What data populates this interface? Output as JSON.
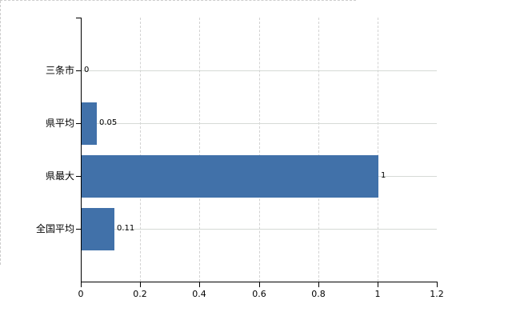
{
  "chart_data": {
    "type": "bar",
    "orientation": "horizontal",
    "title": "",
    "xlabel": "",
    "ylabel": "",
    "categories": [
      "三条市",
      "県平均",
      "県最大",
      "全国平均"
    ],
    "values": [
      0,
      0.05,
      1,
      0.11
    ],
    "value_labels": [
      "0",
      "0.05",
      "1",
      "0.11"
    ],
    "xlim": [
      0,
      1.2
    ],
    "x_ticks": [
      0,
      0.2,
      0.4,
      0.6,
      0.8,
      1,
      1.2
    ],
    "x_tick_labels": [
      "0",
      "0.2",
      "0.4",
      "0.6",
      "0.8",
      "1",
      "1.2"
    ],
    "legend": "none",
    "grid": {
      "vertical": "dashed at each x tick",
      "horizontal": "solid at each category row"
    },
    "colors": {
      "bar": "#4171a9",
      "axis": "#000000",
      "gridline_vertical": "#d2d2d2",
      "gridline_horizontal": "#d6dad6",
      "plot_border_dashed": "#cccccc",
      "text": "#000000",
      "background": "#ffffff"
    }
  }
}
